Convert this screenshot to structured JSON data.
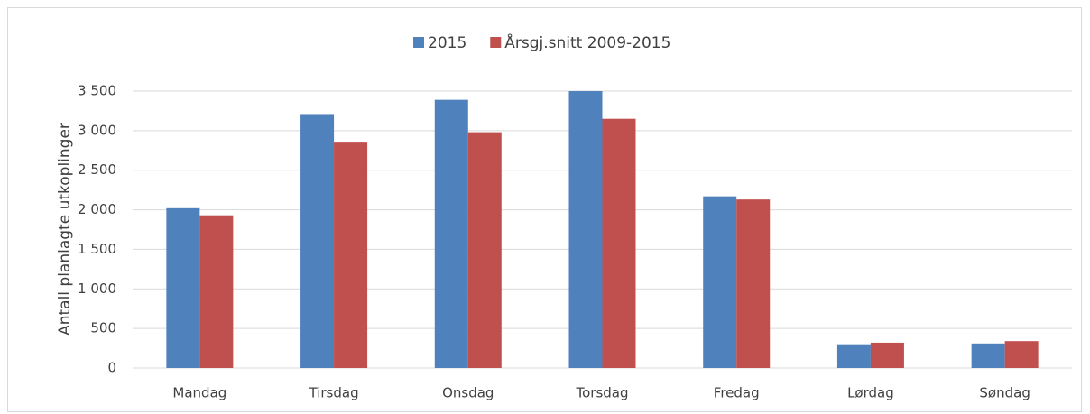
{
  "chart_data": {
    "type": "bar",
    "y_label": "Antall planlagte utkoplinger",
    "categories": [
      "Mandag",
      "Tirsdag",
      "Onsdag",
      "Torsdag",
      "Fredag",
      "Lørdag",
      "Søndag"
    ],
    "series": [
      {
        "name": "2015",
        "color": "#4f81bd",
        "values": [
          2020,
          3210,
          3390,
          3500,
          2170,
          300,
          310
        ]
      },
      {
        "name": "Årsgj.snitt 2009-2015",
        "color": "#c0504d",
        "values": [
          1930,
          2860,
          2980,
          3150,
          2130,
          320,
          340
        ]
      }
    ],
    "ylim": [
      0,
      3500
    ],
    "yticks": [
      0,
      500,
      {
        "value": 1000,
        "label": "1 000"
      },
      {
        "value": 1500,
        "label": "1 500"
      },
      {
        "value": 2000,
        "label": "2 000"
      },
      {
        "value": 2500,
        "label": "2 500"
      },
      {
        "value": 3000,
        "label": "3 000"
      },
      {
        "value": 3500,
        "label": "3 500"
      }
    ],
    "grid": true,
    "legend": "top"
  }
}
